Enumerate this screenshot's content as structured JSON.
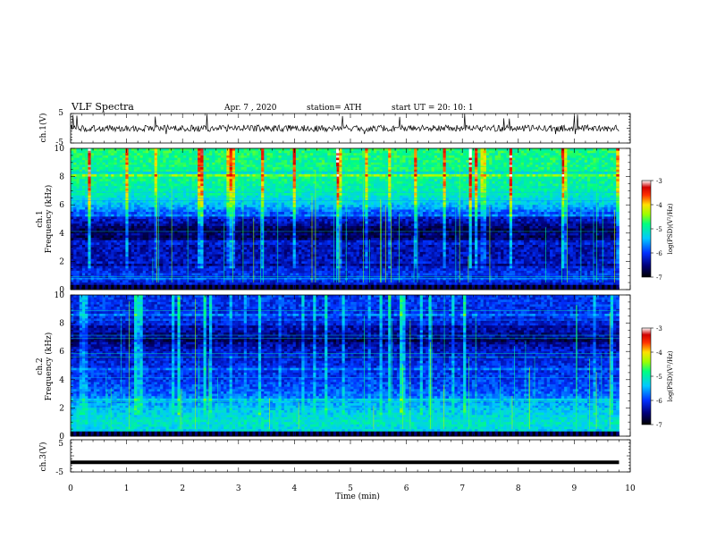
{
  "header": {
    "title": "VLF  Spectra",
    "date": "Apr. 7  , 2020",
    "station": "station= ATH",
    "start": "start  UT  =    20: 10: 1"
  },
  "chart_data": [
    {
      "type": "line",
      "id": "ch1-waveform",
      "ylabel": "ch.1(V)",
      "ylim": [
        -5,
        5
      ],
      "yticks": [
        5,
        -5
      ],
      "xlim": [
        0,
        10
      ],
      "series": [
        {
          "description_values": "noisy waveform around baseline",
          "baseline": 0,
          "upper_spikes_to": 5,
          "lower_spikes_to": -2,
          "ends_at_min": 9.8
        }
      ]
    },
    {
      "type": "heatmap",
      "id": "ch1-spectrogram",
      "ylabel": "Frequency (kHz)",
      "channel_label": "ch.1",
      "ylim": [
        0,
        10
      ],
      "yticks": [
        0,
        2,
        4,
        6,
        8,
        10
      ],
      "xlim": [
        0,
        10
      ],
      "data_end_min": 9.8,
      "colorbar": {
        "label": "log(PSD)(V²/Hz)",
        "range": [
          -7,
          -3
        ],
        "ticks": [
          -3,
          -4,
          -5,
          -6,
          -7
        ]
      },
      "profile_khz_to_logpsd": [
        [
          0,
          -6.3
        ],
        [
          1,
          -6.0
        ],
        [
          2,
          -6.3
        ],
        [
          3,
          -6.3
        ],
        [
          4,
          -6.8
        ],
        [
          5,
          -6.2
        ],
        [
          6,
          -5.4
        ],
        [
          7,
          -5.0
        ],
        [
          8,
          -4.9
        ],
        [
          10,
          -4.8
        ]
      ]
    },
    {
      "type": "heatmap",
      "id": "ch2-spectrogram",
      "ylabel": "Frequency (kHz)",
      "channel_label": "ch.2",
      "ylim": [
        0,
        10
      ],
      "yticks": [
        0,
        2,
        4,
        6,
        8,
        10
      ],
      "xlim": [
        0,
        10
      ],
      "data_end_min": 9.8,
      "colorbar": {
        "label": "log(PSD)(V²/Hz)",
        "range": [
          -7,
          -3
        ],
        "ticks": [
          -3,
          -4,
          -5,
          -6,
          -7
        ]
      },
      "profile_khz_to_logpsd": [
        [
          0,
          -5.4
        ],
        [
          1,
          -5.1
        ],
        [
          2,
          -5.4
        ],
        [
          3,
          -5.8
        ],
        [
          4,
          -6.0
        ],
        [
          5,
          -6.1
        ],
        [
          6,
          -6.2
        ],
        [
          7,
          -6.6
        ],
        [
          8,
          -6.1
        ],
        [
          10,
          -6.0
        ]
      ]
    },
    {
      "type": "line",
      "id": "ch3-waveform",
      "ylabel": "ch.3(V)",
      "ylim": [
        -5,
        5
      ],
      "yticks": [
        5,
        -5
      ],
      "xlim": [
        0,
        10
      ],
      "series": [
        {
          "constant_value": -2,
          "ends_at_min": 9.8
        }
      ]
    }
  ],
  "xaxis": {
    "label": "Time  (min)",
    "ticks": [
      "0",
      "1",
      "2",
      "3",
      "4",
      "5",
      "6",
      "7",
      "8",
      "9",
      "10"
    ]
  }
}
